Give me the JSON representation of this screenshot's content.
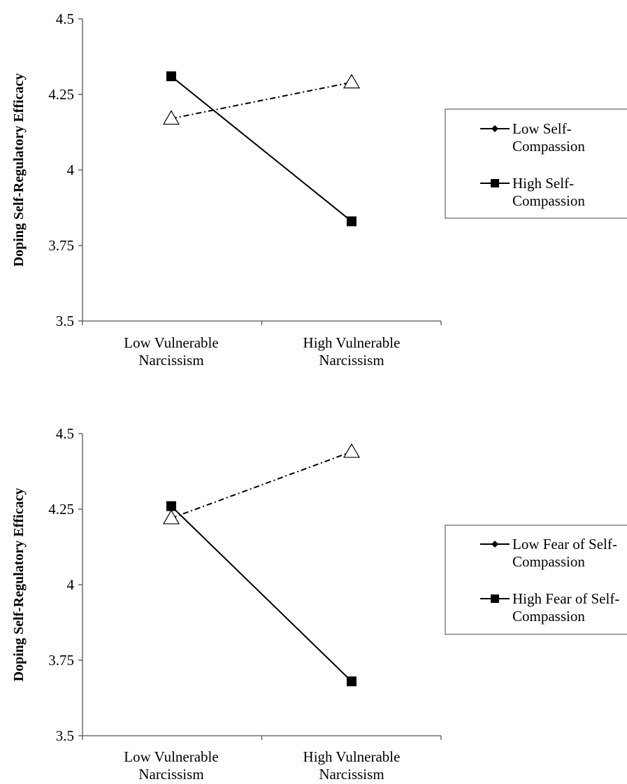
{
  "chart_data": [
    {
      "type": "line",
      "title": "",
      "xlabel": "",
      "ylabel": "Doping Self-Regulatory Efficacy",
      "ylim": [
        3.5,
        4.5
      ],
      "yticks": [
        "3.5",
        "3.75",
        "4",
        "4.25",
        "4.5"
      ],
      "categories": [
        [
          "Low Vulnerable",
          "Narcissism"
        ],
        [
          "High Vulnerable",
          "Narcissism"
        ]
      ],
      "legend_position": "right",
      "series": [
        {
          "name": [
            "Low Self-",
            "Compassion"
          ],
          "values": [
            4.17,
            4.29
          ],
          "line_style": "dash-dot",
          "marker": "open-triangle",
          "legend_marker": "diamond",
          "color": "#000000"
        },
        {
          "name": [
            "High Self-",
            "Compassion"
          ],
          "values": [
            4.31,
            3.83
          ],
          "line_style": "solid",
          "marker": "filled-square",
          "legend_marker": "square",
          "color": "#000000"
        }
      ]
    },
    {
      "type": "line",
      "title": "",
      "xlabel": "",
      "ylabel": "Doping Self-Regulatory Efficacy",
      "ylim": [
        3.5,
        4.5
      ],
      "yticks": [
        "3.5",
        "3.75",
        "4",
        "4.25",
        "4.5"
      ],
      "categories": [
        [
          "Low Vulnerable",
          "Narcissism"
        ],
        [
          "High Vulnerable",
          "Narcissism"
        ]
      ],
      "legend_position": "right",
      "series": [
        {
          "name": [
            "Low Fear of Self-",
            "Compassion"
          ],
          "values": [
            4.22,
            4.44
          ],
          "line_style": "dash-dot",
          "marker": "open-triangle",
          "legend_marker": "diamond",
          "color": "#000000"
        },
        {
          "name": [
            "High Fear of Self-",
            "Compassion"
          ],
          "values": [
            4.26,
            3.68
          ],
          "line_style": "solid",
          "marker": "filled-square",
          "legend_marker": "square",
          "color": "#000000"
        }
      ]
    }
  ]
}
